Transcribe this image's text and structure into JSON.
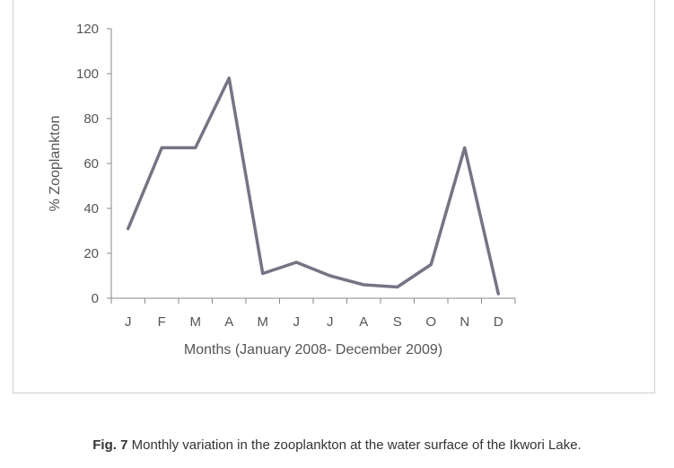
{
  "chart_data": {
    "type": "line",
    "categories": [
      "J",
      "F",
      "M",
      "A",
      "M",
      "J",
      "J",
      "A",
      "S",
      "O",
      "N",
      "D"
    ],
    "series": [
      {
        "values": [
          31,
          67,
          67,
          98,
          11,
          16,
          10,
          6,
          5,
          15,
          67,
          2
        ]
      }
    ],
    "ylim": [
      0,
      120
    ],
    "yticks": [
      0,
      20,
      40,
      60,
      80,
      100,
      120
    ],
    "xlabel": "Months (January 2008- December 2009)",
    "ylabel": "% Zooplankton",
    "grid": false,
    "legend": "none",
    "line_color": "#777384"
  },
  "caption": {
    "fig_label": "Fig. 7",
    "text": " Monthly variation in the zooplankton at the water surface of the Ikwori Lake."
  }
}
